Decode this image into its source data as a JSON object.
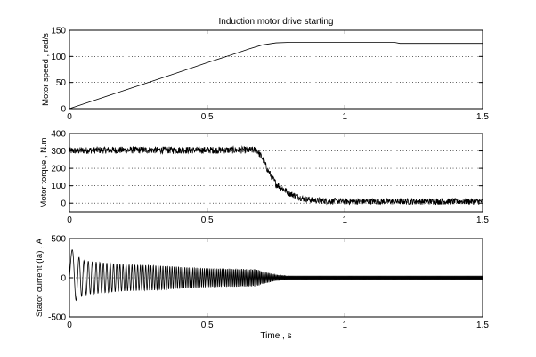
{
  "chart_data": [
    {
      "type": "line",
      "title": "Induction motor drive starting",
      "xlabel": "",
      "ylabel": "Motor speed , rad/s",
      "xlim": [
        0,
        1.5
      ],
      "ylim": [
        0,
        150
      ],
      "x_ticks": [
        "0",
        "0.5",
        "1",
        "1.5"
      ],
      "y_ticks": [
        "0",
        "50",
        "100",
        "150"
      ],
      "grid": true,
      "series": [
        {
          "x": [
            0,
            0.1,
            0.2,
            0.3,
            0.4,
            0.5,
            0.6,
            0.65,
            0.7,
            0.75,
            0.8,
            1.0,
            1.18,
            1.2,
            1.5
          ],
          "y": [
            0,
            17.5,
            35,
            52.5,
            70,
            88,
            105,
            114,
            122,
            126,
            127,
            127,
            127,
            125,
            125
          ]
        }
      ]
    },
    {
      "type": "line",
      "title": "",
      "xlabel": "",
      "ylabel": "Motor torque , N.m",
      "xlim": [
        0,
        1.5
      ],
      "ylim": [
        -50,
        400
      ],
      "x_ticks": [
        "0",
        "0.5",
        "1",
        "1.5"
      ],
      "y_ticks": [
        "0",
        "100",
        "200",
        "300",
        "400"
      ],
      "grid": true,
      "series": [
        {
          "x": [
            0,
            0.1,
            0.2,
            0.3,
            0.4,
            0.5,
            0.6,
            0.68,
            0.7,
            0.72,
            0.75,
            0.8,
            0.85,
            0.9,
            1.0,
            1.2,
            1.5
          ],
          "y": [
            300,
            305,
            305,
            305,
            305,
            305,
            305,
            305,
            260,
            190,
            110,
            55,
            25,
            15,
            10,
            10,
            10
          ],
          "noise_amplitude": [
            20,
            20,
            20,
            20,
            20,
            20,
            20,
            20,
            20,
            20,
            20,
            18,
            18,
            18,
            18,
            18,
            18
          ]
        }
      ]
    },
    {
      "type": "line",
      "title": "",
      "xlabel": "Time , s",
      "ylabel": "Stator current (Ia) , A",
      "xlim": [
        0,
        1.5
      ],
      "ylim": [
        -500,
        500
      ],
      "x_ticks": [
        "0",
        "0.5",
        "1",
        "1.5"
      ],
      "y_ticks": [
        "-500",
        "0",
        "500"
      ],
      "grid": true,
      "series": [
        {
          "x": [
            0,
            0.004,
            0.01,
            0.02,
            0.05,
            0.1,
            0.2,
            0.3,
            0.4,
            0.5,
            0.6,
            0.68,
            0.7,
            0.75,
            0.8,
            1.0,
            1.5
          ],
          "envelope": [
            450,
            420,
            360,
            300,
            220,
            200,
            170,
            160,
            140,
            120,
            115,
            110,
            80,
            40,
            25,
            25,
            25
          ],
          "frequency_hz": [
            1.5,
            2,
            3,
            4,
            6,
            7.5,
            9,
            11,
            13,
            15,
            17,
            19,
            19,
            22,
            30,
            30,
            30
          ]
        }
      ]
    }
  ]
}
